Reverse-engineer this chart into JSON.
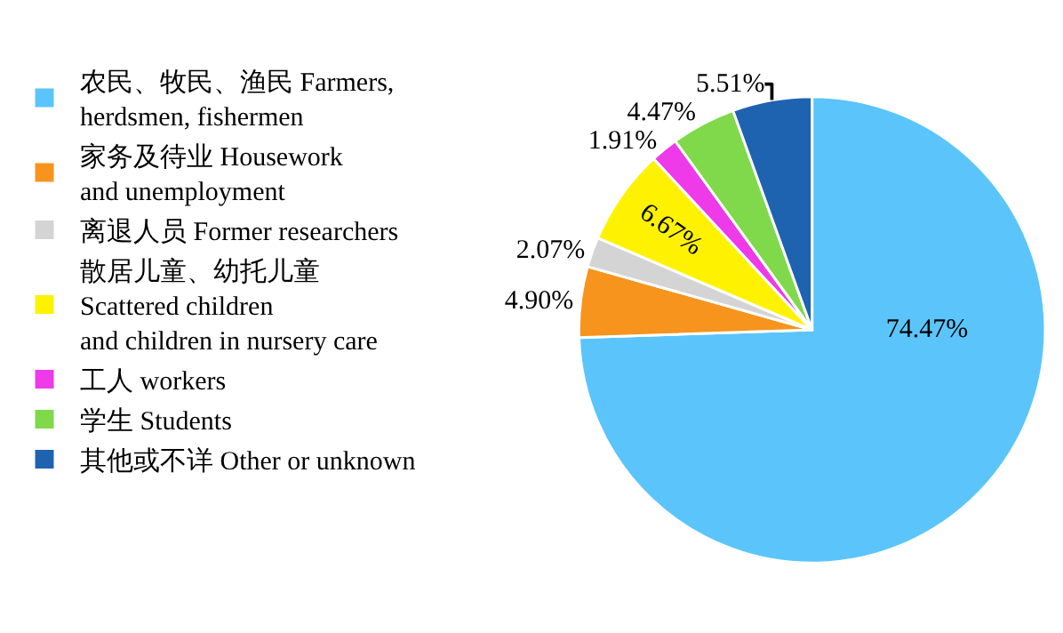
{
  "chart_data": {
    "type": "pie",
    "categories": [
      "农民、牧民、渔民 Farmers,\nherdsmen, fishermen",
      "家务及待业 Housework\nand unemployment",
      "离退人员 Former researchers",
      "散居儿童、幼托儿童\nScattered children\nand children in nursery care",
      "工人 workers",
      "学生 Students",
      "其他或不详 Other or unknown"
    ],
    "values": [
      74.47,
      4.9,
      2.07,
      6.67,
      1.91,
      4.47,
      5.51
    ],
    "value_labels": [
      "74.47%",
      "4.90%",
      "2.07%",
      "6.67%",
      "1.91%",
      "4.47%",
      "5.51%"
    ],
    "colors": [
      "#5bc5fb",
      "#f7941d",
      "#d4d4d4",
      "#fff200",
      "#ee3ae8",
      "#80d94a",
      "#1e63b0"
    ],
    "legend": "left"
  }
}
